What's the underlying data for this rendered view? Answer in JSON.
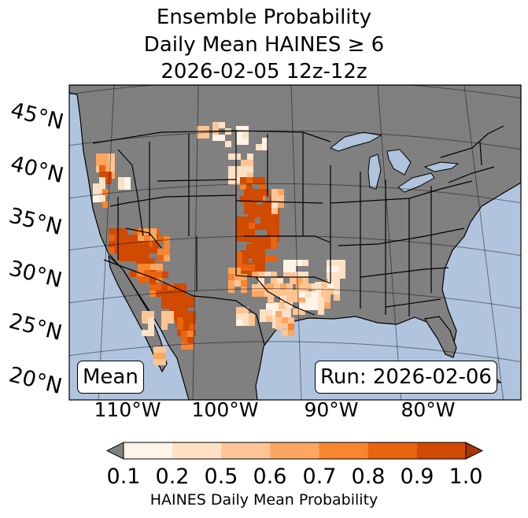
{
  "title": {
    "line1": "Ensemble Probability",
    "line2": "Daily Mean HAINES ≥ 6",
    "line3": "2026-02-05 12z-12z"
  },
  "map": {
    "lat_labels": [
      "45°N",
      "40°N",
      "35°N",
      "30°N",
      "25°N",
      "20°N"
    ],
    "lon_labels": [
      "110°W",
      "100°W",
      "90°W",
      "80°W"
    ],
    "stat_box": "Mean",
    "run_box": "Run: 2026-02-06",
    "colors": {
      "ocean": "#b0c4de",
      "land": "#808080",
      "borders": "#000000"
    }
  },
  "colorbar": {
    "label": "HAINES Daily Mean Probability",
    "ticks": [
      "0.1",
      "0.2",
      "0.5",
      "0.6",
      "0.7",
      "0.8",
      "0.9",
      "1.0"
    ],
    "under_color": "#808080",
    "colors": [
      "#fff4e8",
      "#fee1c4",
      "#fdc594",
      "#fda660",
      "#f8852f",
      "#e8640f",
      "#d04a02",
      "#a33603"
    ]
  }
}
